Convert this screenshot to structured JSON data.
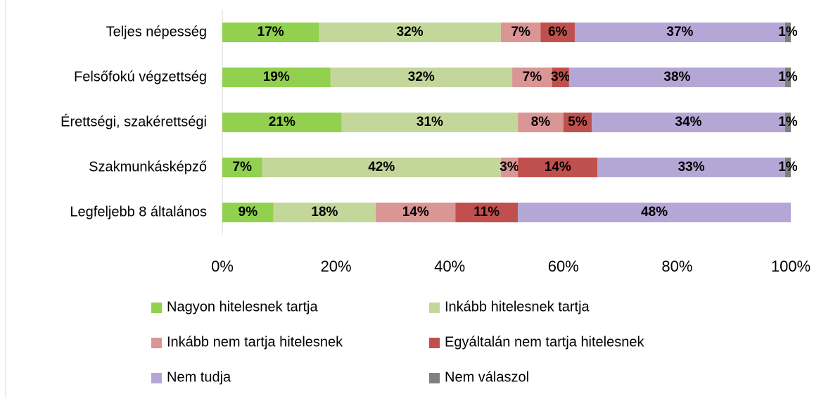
{
  "chart_data": {
    "type": "stacked-bar-horizontal",
    "categories": [
      "Teljes népesség",
      "Felsőfokú végzettség",
      "Érettségi, szakérettségi",
      "Szakmunkásképző",
      "Legfeljebb 8 általános"
    ],
    "series": [
      {
        "name": "Nagyon hitelesnek tartja",
        "color": "#92d050",
        "values": [
          17,
          19,
          21,
          7,
          9
        ],
        "value_labels": [
          "17%",
          "19%",
          "21%",
          "7%",
          "9%"
        ]
      },
      {
        "name": "Inkább hitelesnek tartja",
        "color": "#c4d79b",
        "values": [
          32,
          32,
          31,
          42,
          18
        ],
        "value_labels": [
          "32%",
          "32%",
          "31%",
          "42%",
          "18%"
        ]
      },
      {
        "name": "Inkább nem tartja hitelesnek",
        "color": "#da9694",
        "values": [
          7,
          7,
          8,
          3,
          14
        ],
        "value_labels": [
          "7%",
          "7%",
          "8%",
          "3%",
          "14%"
        ]
      },
      {
        "name": "Egyáltalán nem tartja hitelesnek",
        "color": "#c0504d",
        "values": [
          6,
          3,
          5,
          14,
          11
        ],
        "value_labels": [
          "6%",
          "3%",
          "5%",
          "14%",
          "11%"
        ]
      },
      {
        "name": "Nem tudja",
        "color": "#b4a7d6",
        "values": [
          37,
          38,
          34,
          33,
          48
        ],
        "value_labels": [
          "37%",
          "38%",
          "34%",
          "33%",
          "48%"
        ]
      },
      {
        "name": "Nem válaszol",
        "color": "#808080",
        "values": [
          1,
          1,
          1,
          1,
          null
        ],
        "value_labels": [
          "1%",
          "1%",
          "1%",
          "1%",
          null
        ]
      }
    ],
    "xlim": [
      0,
      100
    ],
    "xticks": [
      {
        "value": 0,
        "label": "0%"
      },
      {
        "value": 20,
        "label": "20%"
      },
      {
        "value": 40,
        "label": "40%"
      },
      {
        "value": 60,
        "label": "60%"
      },
      {
        "value": 80,
        "label": "80%"
      },
      {
        "value": 100,
        "label": "100%"
      }
    ],
    "grid": false,
    "legend": "bottom"
  }
}
